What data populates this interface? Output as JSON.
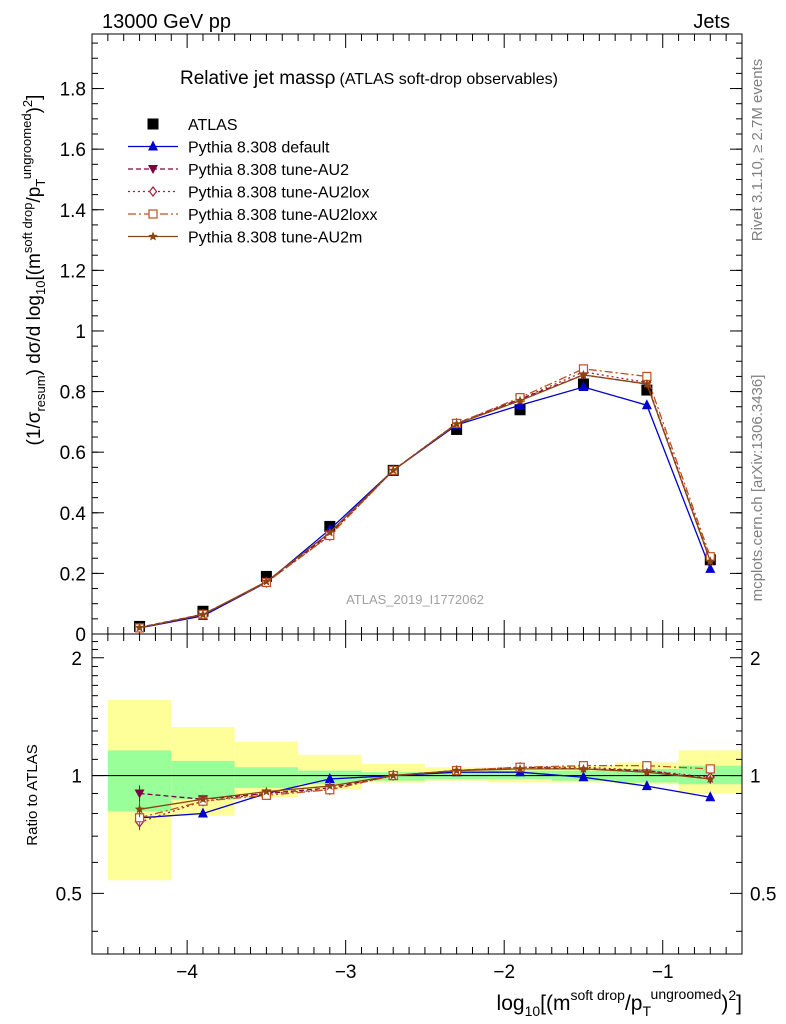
{
  "header": {
    "left": "13000 GeV pp",
    "right": "Jets"
  },
  "side": {
    "rivet": "Rivet 3.1.10, ≥ 2.7M events",
    "mcplots": "mcplots.cern.ch [arXiv:1306.3436]"
  },
  "colors": {
    "atlas": "#000000",
    "default": "#0000cc",
    "au2": "#800040",
    "au2lox": "#a0203a",
    "au2loxx": "#c05020",
    "au2m": "#8b4513",
    "band_inner": "#99ff99",
    "band_outer": "#ffff99"
  },
  "chart_data": [
    {
      "type": "line",
      "title": "Relative jet mass",
      "title_symbol": "ρ",
      "title_suffix": "(ATLAS soft-drop observables)",
      "ylabel": "(1/σresum) dσ/d log10[(msoft drop/pTungroomed)2]",
      "ylabel_parts": {
        "a": "(1/σ",
        "b": "resum",
        "c": ") dσ/d log",
        "d": "10",
        "e": "[(m",
        "f": "soft drop",
        "g": "/p",
        "h": "T",
        "i": "ungroomed",
        "j": ")",
        "k": "2",
        "l": "]"
      },
      "xlim": [
        -4.6,
        -0.5
      ],
      "ylim": [
        0,
        1.98
      ],
      "yticks": [
        0,
        0.2,
        0.4,
        0.6,
        0.8,
        1,
        1.2,
        1.4,
        1.6,
        1.8
      ],
      "ytick_labels": [
        "0",
        "0.2",
        "0.4",
        "0.6",
        "0.8",
        "1",
        "1.2",
        "1.4",
        "1.6",
        "1.8"
      ],
      "watermark": "ATLAS_2019_I1772062",
      "legend_position": "top-left",
      "x": [
        -4.3,
        -3.9,
        -3.5,
        -3.1,
        -2.7,
        -2.3,
        -1.9,
        -1.5,
        -1.1,
        -0.7
      ],
      "series": [
        {
          "name": "ATLAS",
          "marker": "square-filled",
          "values": [
            0.025,
            0.075,
            0.19,
            0.355,
            0.54,
            0.675,
            0.74,
            0.825,
            0.805,
            0.245
          ]
        },
        {
          "name": "Pythia 8.308 default",
          "marker": "triangle-up",
          "dash": "",
          "values": [
            0.02,
            0.06,
            0.17,
            0.345,
            0.54,
            0.69,
            0.755,
            0.815,
            0.755,
            0.215
          ]
        },
        {
          "name": "Pythia 8.308 tune-AU2",
          "marker": "triangle-down",
          "dash": "5,3",
          "values": [
            0.022,
            0.065,
            0.17,
            0.33,
            0.54,
            0.695,
            0.775,
            0.855,
            0.825,
            0.24
          ]
        },
        {
          "name": "Pythia 8.308 tune-AU2lox",
          "marker": "diamond-open",
          "dash": "2,3",
          "values": [
            0.02,
            0.065,
            0.17,
            0.325,
            0.54,
            0.695,
            0.775,
            0.865,
            0.83,
            0.245
          ]
        },
        {
          "name": "Pythia 8.308 tune-AU2loxx",
          "marker": "square-open",
          "dash": "8,3,2,3",
          "values": [
            0.02,
            0.065,
            0.17,
            0.325,
            0.54,
            0.695,
            0.78,
            0.875,
            0.85,
            0.255
          ]
        },
        {
          "name": "Pythia 8.308 tune-AU2m",
          "marker": "star",
          "dash": "",
          "values": [
            0.021,
            0.064,
            0.173,
            0.335,
            0.54,
            0.693,
            0.77,
            0.855,
            0.825,
            0.24
          ]
        }
      ]
    },
    {
      "type": "line",
      "ylabel": "Ratio to ATLAS",
      "xlabel": "log10[(msoft drop/pTungroomed)2]",
      "xlabel_parts": {
        "a": "log",
        "b": "10",
        "c": "[(m",
        "d": "soft drop",
        "e": "/p",
        "f": "T",
        "g": "ungroomed",
        "h": ")",
        "i": "2",
        "j": "]"
      },
      "xlim": [
        -4.6,
        -0.5
      ],
      "ylim": [
        0.35,
        2.3
      ],
      "yticks": [
        0.5,
        1,
        2
      ],
      "ytick_labels": [
        "0.5",
        "1",
        "2"
      ],
      "xticks": [
        -4,
        -3,
        -2,
        -1
      ],
      "xtick_labels": [
        "−4",
        "−3",
        "−2",
        "−1"
      ],
      "band_edges": [
        -4.5,
        -4.1,
        -3.7,
        -3.3,
        -2.9,
        -2.5,
        -2.1,
        -1.7,
        -1.3,
        -0.9,
        -0.5
      ],
      "band_inner_low": [
        0.81,
        0.87,
        0.93,
        0.95,
        0.97,
        0.98,
        0.98,
        0.97,
        0.96,
        0.95
      ],
      "band_inner_high": [
        1.16,
        1.09,
        1.05,
        1.03,
        1.02,
        1.02,
        1.03,
        1.03,
        1.04,
        1.06
      ],
      "band_outer_low": [
        0.54,
        0.79,
        0.88,
        0.92,
        0.96,
        0.97,
        0.96,
        0.96,
        0.95,
        0.9
      ],
      "band_outer_high": [
        1.56,
        1.33,
        1.22,
        1.13,
        1.07,
        1.05,
        1.05,
        1.06,
        1.08,
        1.16
      ],
      "x": [
        -4.3,
        -3.9,
        -3.5,
        -3.1,
        -2.7,
        -2.3,
        -1.9,
        -1.5,
        -1.1,
        -0.7
      ],
      "series": [
        {
          "name": "Pythia 8.308 default",
          "values": [
            0.78,
            0.8,
            0.9,
            0.98,
            1.0,
            1.02,
            1.02,
            0.99,
            0.94,
            0.88
          ]
        },
        {
          "name": "Pythia 8.308 tune-AU2",
          "values": [
            0.9,
            0.87,
            0.9,
            0.93,
            1.0,
            1.03,
            1.05,
            1.04,
            1.03,
            0.98
          ]
        },
        {
          "name": "Pythia 8.308 tune-AU2lox",
          "values": [
            0.76,
            0.86,
            0.9,
            0.92,
            1.0,
            1.03,
            1.05,
            1.05,
            1.03,
            0.99
          ]
        },
        {
          "name": "Pythia 8.308 tune-AU2loxx",
          "values": [
            0.78,
            0.86,
            0.89,
            0.92,
            1.0,
            1.03,
            1.05,
            1.06,
            1.06,
            1.04
          ]
        },
        {
          "name": "Pythia 8.308 tune-AU2m",
          "values": [
            0.82,
            0.87,
            0.91,
            0.94,
            1.0,
            1.03,
            1.04,
            1.04,
            1.02,
            0.98
          ]
        }
      ]
    }
  ]
}
